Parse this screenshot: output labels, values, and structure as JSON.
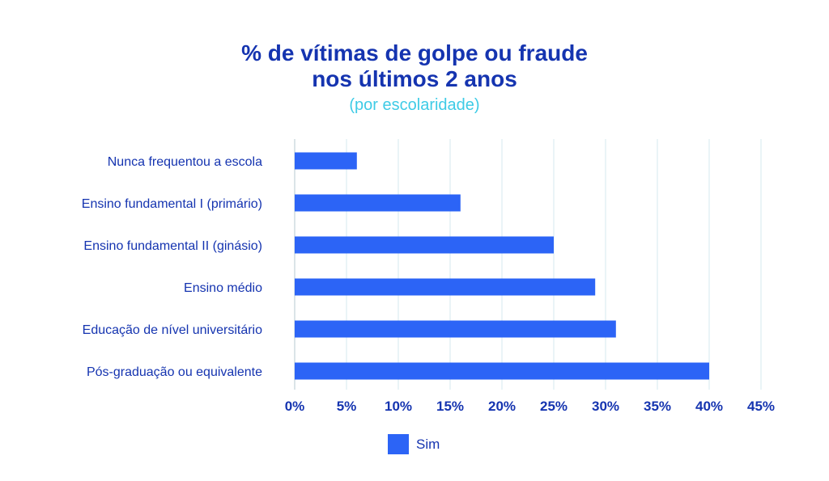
{
  "chart_data": {
    "type": "bar",
    "orientation": "horizontal",
    "title_line1": "% de vítimas de golpe ou fraude",
    "title_line2": "nos últimos 2 anos",
    "subtitle": "(por escolaridade)",
    "categories": [
      "Nunca frequentou a escola",
      "Ensino fundamental I (primário)",
      "Ensino fundamental II (ginásio)",
      "Ensino médio",
      "Educação de nível universitário",
      "Pós-graduação ou equivalente"
    ],
    "series": [
      {
        "name": "Sim",
        "values": [
          6,
          16,
          25,
          29,
          31,
          40
        ]
      }
    ],
    "xlim": [
      0,
      45
    ],
    "xticks": [
      "0%",
      "5%",
      "10%",
      "15%",
      "20%",
      "25%",
      "30%",
      "35%",
      "40%",
      "45%"
    ],
    "grid": true,
    "legend_position": "bottom",
    "colors": {
      "bar": "#2c64f6",
      "text": "#1534b0",
      "subtitle": "#3ecbe6",
      "grid": "#d6e9ef"
    }
  }
}
